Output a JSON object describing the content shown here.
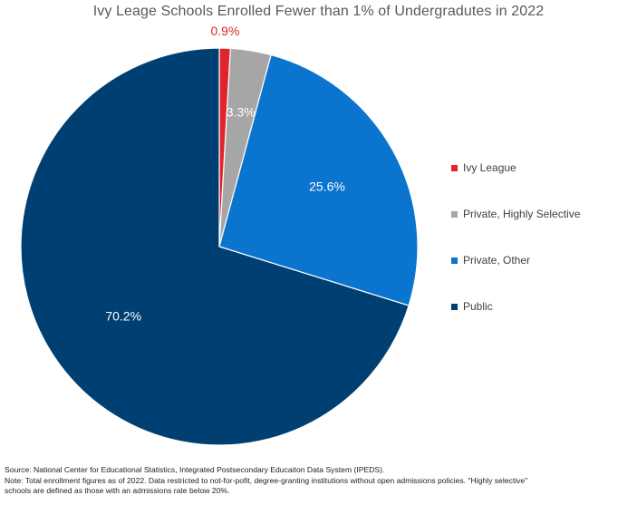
{
  "chart_data": {
    "type": "pie",
    "title": "Ivy Leage Schools Enrolled Fewer than 1% of Undergradutes in 2022",
    "categories": [
      "Ivy League",
      "Private, Highly Selective",
      "Private, Other",
      "Public"
    ],
    "values": [
      0.9,
      3.3,
      25.6,
      70.2
    ],
    "labels": [
      "0.9%",
      "3.3%",
      "25.6%",
      "70.2%"
    ],
    "colors": [
      "#e0242b",
      "#a6a6a6",
      "#0b74cf",
      "#003f72"
    ],
    "label_colors": [
      "#e0242b",
      "#ffffff",
      "#ffffff",
      "#ffffff"
    ],
    "start": "12 o'clock",
    "direction": "clockwise",
    "legend_position": "right"
  },
  "legend": {
    "items": [
      "Ivy League",
      "Private, Highly Selective",
      "Private, Other",
      "Public"
    ]
  },
  "footnotes": {
    "source": "Source: National Center for Educational Statistics, Integrated Postsecondary Educaiton Data System (IPEDS).",
    "note_line1": "Note: Total enrollment figures as of 2022. Data restricted to not-for-pofit, degree-granting institutions without open admissions policies. \"Highly selective\"",
    "note_line2": "schools are defined as those with an admissions rate below 20%."
  }
}
